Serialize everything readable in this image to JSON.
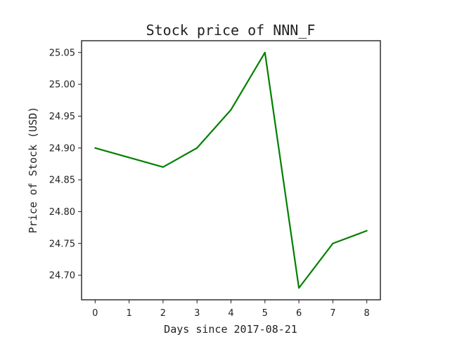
{
  "chart_data": {
    "type": "line",
    "title": "Stock price of NNN_F",
    "xlabel": "Days since 2017-08-21",
    "ylabel": "Price of Stock (USD)",
    "x": [
      0,
      1,
      2,
      3,
      4,
      5,
      6,
      7,
      8
    ],
    "xticks": [
      "0",
      "1",
      "2",
      "3",
      "4",
      "5",
      "6",
      "7",
      "8"
    ],
    "xlim": [
      -0.4,
      8.4
    ],
    "yticks": [
      "24.70",
      "24.75",
      "24.80",
      "24.85",
      "24.90",
      "24.95",
      "25.00",
      "25.05"
    ],
    "ylim": [
      24.6615,
      25.0685
    ],
    "grid": false,
    "legend": "none",
    "series": [
      {
        "color": "#008000",
        "values": [
          24.9,
          null,
          24.87,
          24.9,
          24.96,
          25.05,
          24.68,
          24.75,
          24.77
        ]
      }
    ]
  }
}
